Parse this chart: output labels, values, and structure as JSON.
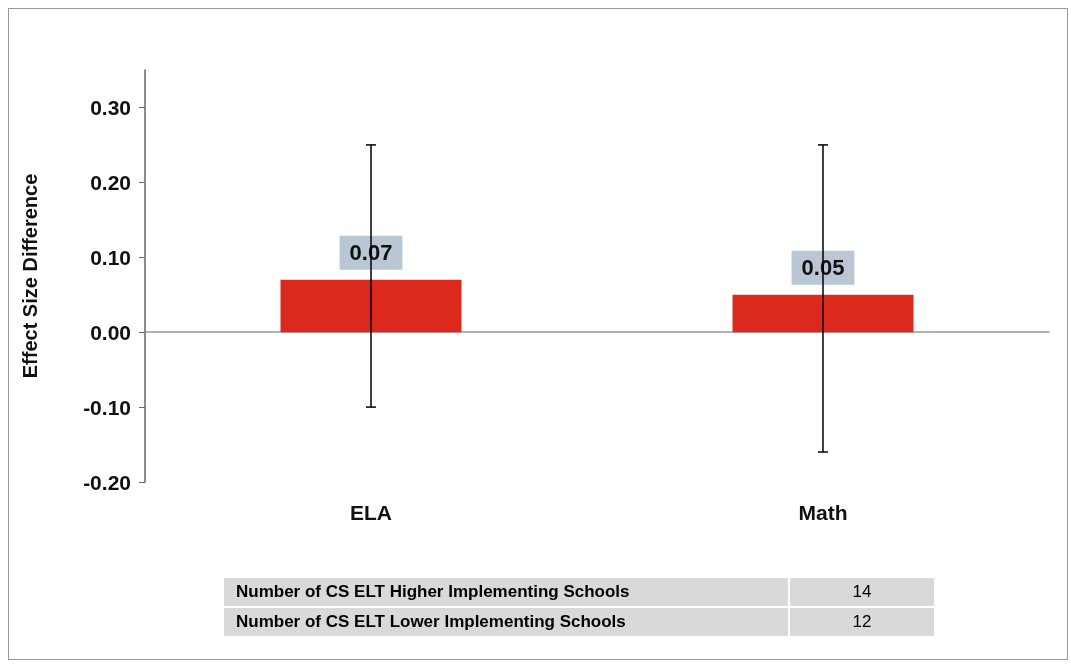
{
  "chart_data": {
    "type": "bar",
    "categories": [
      "ELA",
      "Math"
    ],
    "values": [
      0.07,
      0.05
    ],
    "color": "#dc291e",
    "errors": [
      [
        -0.1,
        0.25
      ],
      [
        -0.16,
        0.25
      ]
    ],
    "ylabel": "Effect Size Difference",
    "ylim": [
      -0.2,
      0.35
    ],
    "yticks": [
      {
        "value": -0.2,
        "label": "-0.20"
      },
      {
        "value": -0.1,
        "label": "-0.10"
      },
      {
        "value": 0,
        "label": "0.00"
      },
      {
        "value": 0.1,
        "label": "0.10"
      },
      {
        "value": 0.2,
        "label": "0.20"
      },
      {
        "value": 0.3,
        "label": "0.30"
      }
    ],
    "data_labels": true,
    "annotations": [
      "Number of CS ELT Higher Implementing Schools",
      "14",
      "Number of CS ELT Lower Implementing Schools",
      "12"
    ]
  }
}
